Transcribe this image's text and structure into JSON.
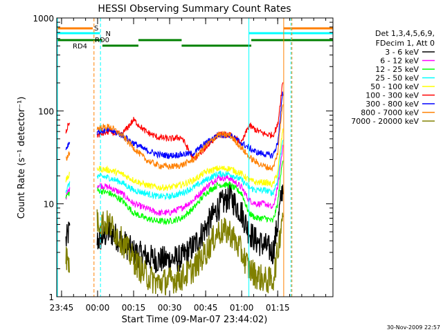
{
  "chart_data": {
    "type": "line",
    "title": "HESSI Observing Summary Count Rates",
    "xlabel": "Start Time (09-Mar-07 23:44:02)",
    "ylabel": "Count Rate (s⁻¹ detector⁻¹)",
    "yscale": "log",
    "ylim": [
      1,
      1000
    ],
    "xlim_minutes": [
      -17,
      98
    ],
    "x_ticks": [
      {
        "label": "23:45",
        "minute": -15
      },
      {
        "label": "00:00",
        "minute": 0
      },
      {
        "label": "00:15",
        "minute": 15
      },
      {
        "label": "00:30",
        "minute": 30
      },
      {
        "label": "00:45",
        "minute": 45
      },
      {
        "label": "01:00",
        "minute": 60
      },
      {
        "label": "01:15",
        "minute": 75
      }
    ],
    "y_ticks": [
      {
        "label": "1",
        "value": 1
      },
      {
        "label": "10",
        "value": 10
      },
      {
        "label": "100",
        "value": 100
      },
      {
        "label": "1000",
        "value": 1000
      }
    ],
    "legend": {
      "position": "right",
      "header": [
        "Det 1,3,4,5,6,9,",
        "FDecim 1, Att 0"
      ],
      "entries": [
        {
          "label": "3 - 6 keV",
          "color": "#000000"
        },
        {
          "label": "6 - 12 keV",
          "color": "#ff00ff"
        },
        {
          "label": "12 - 25 keV",
          "color": "#00ff00"
        },
        {
          "label": "25 - 50 keV",
          "color": "#00ffff"
        },
        {
          "label": "50 - 100 keV",
          "color": "#ffff00"
        },
        {
          "label": "100 - 300 keV",
          "color": "#ff0000"
        },
        {
          "label": "300 - 800 keV",
          "color": "#0000ff"
        },
        {
          "label": "800 - 7000 keV",
          "color": "#ff8000"
        },
        {
          "label": "7000 - 20000 keV",
          "color": "#808000"
        }
      ]
    },
    "flags": {
      "saa_label": "S",
      "night_label": "N",
      "rd0_label": "RD0",
      "rd4_label": "RD4"
    },
    "series": [
      {
        "name": "3 - 6 keV",
        "color": "#000000",
        "x": [
          -13,
          -12,
          0,
          5,
          10,
          15,
          20,
          25,
          30,
          35,
          40,
          45,
          50,
          55,
          60,
          63,
          66,
          70,
          73,
          75,
          77
        ],
        "y": [
          4,
          5,
          4,
          5,
          4,
          3,
          2.7,
          2.5,
          2.5,
          2.6,
          3.5,
          5.5,
          9,
          12,
          8,
          5,
          4,
          3.5,
          3,
          6,
          15
        ]
      },
      {
        "name": "6 - 12 keV",
        "color": "#ff00ff",
        "x": [
          -13,
          -12,
          0,
          5,
          10,
          15,
          20,
          25,
          30,
          35,
          40,
          45,
          50,
          55,
          60,
          63,
          66,
          70,
          73,
          75,
          77
        ],
        "y": [
          12,
          14,
          16,
          15,
          13,
          10,
          9,
          8,
          8,
          9,
          11,
          15,
          19,
          19,
          15,
          11,
          10,
          10,
          9,
          15,
          40
        ]
      },
      {
        "name": "12 - 25 keV",
        "color": "#00ff00",
        "x": [
          -13,
          -12,
          0,
          5,
          10,
          15,
          20,
          25,
          30,
          35,
          40,
          45,
          50,
          55,
          60,
          63,
          66,
          70,
          73,
          75,
          77
        ],
        "y": [
          12,
          13,
          14,
          13,
          11,
          8,
          7,
          6.5,
          6.5,
          7,
          9,
          13,
          16,
          16,
          13,
          8,
          7,
          7,
          6.5,
          10,
          30
        ]
      },
      {
        "name": "25 - 50 keV",
        "color": "#00ffff",
        "x": [
          -13,
          -12,
          0,
          5,
          10,
          15,
          20,
          25,
          30,
          35,
          40,
          45,
          50,
          55,
          60,
          63,
          66,
          70,
          73,
          75,
          77
        ],
        "y": [
          14,
          16,
          20,
          19,
          17,
          14,
          13,
          12,
          12,
          13,
          15,
          18,
          21,
          21,
          18,
          15,
          14,
          14,
          13,
          18,
          50
        ]
      },
      {
        "name": "50 - 100 keV",
        "color": "#ffff00",
        "x": [
          -13,
          -12,
          0,
          5,
          10,
          15,
          20,
          25,
          30,
          35,
          40,
          45,
          50,
          55,
          60,
          63,
          66,
          70,
          73,
          75,
          77
        ],
        "y": [
          18,
          20,
          24,
          23,
          21,
          18,
          16,
          15,
          15,
          16,
          18,
          22,
          24,
          24,
          21,
          18,
          17,
          17,
          16,
          22,
          60
        ]
      },
      {
        "name": "100 - 300 keV",
        "color": "#ff0000",
        "x": [
          -13,
          -12,
          0,
          5,
          10,
          15,
          20,
          25,
          30,
          35,
          40,
          45,
          50,
          55,
          60,
          63,
          66,
          70,
          73,
          75,
          77
        ],
        "y": [
          60,
          75,
          55,
          60,
          55,
          80,
          60,
          52,
          50,
          52,
          30,
          40,
          55,
          55,
          45,
          70,
          62,
          56,
          55,
          70,
          200
        ]
      },
      {
        "name": "300 - 800 keV",
        "color": "#0000ff",
        "x": [
          -13,
          -12,
          0,
          5,
          10,
          15,
          20,
          25,
          30,
          35,
          40,
          45,
          50,
          55,
          60,
          63,
          66,
          70,
          73,
          75,
          77
        ],
        "y": [
          40,
          45,
          60,
          62,
          55,
          45,
          38,
          34,
          33,
          34,
          35,
          45,
          55,
          55,
          45,
          40,
          36,
          34,
          33,
          45,
          150
        ]
      },
      {
        "name": "800 - 7000 keV",
        "color": "#ff8000",
        "x": [
          -13,
          -12,
          0,
          5,
          10,
          15,
          20,
          25,
          30,
          35,
          40,
          45,
          50,
          55,
          60,
          63,
          66,
          70,
          73,
          75,
          77
        ],
        "y": [
          30,
          35,
          65,
          68,
          55,
          40,
          30,
          26,
          25,
          26,
          30,
          42,
          55,
          55,
          40,
          32,
          28,
          25,
          24,
          35,
          120
        ]
      },
      {
        "name": "7000 - 20000 keV",
        "color": "#808000",
        "x": [
          -13,
          -12,
          0,
          5,
          10,
          15,
          20,
          25,
          30,
          35,
          40,
          45,
          50,
          55,
          60,
          63,
          66,
          70,
          73,
          75,
          77
        ],
        "y": [
          2.7,
          2.2,
          6.5,
          6,
          4,
          2.5,
          1.7,
          1.4,
          1.5,
          1.6,
          2,
          3,
          5,
          5,
          3,
          2,
          1.7,
          1.5,
          1.5,
          3,
          8
        ]
      }
    ]
  },
  "footer": {
    "timestamp": "30-Nov-2009 22:57"
  }
}
